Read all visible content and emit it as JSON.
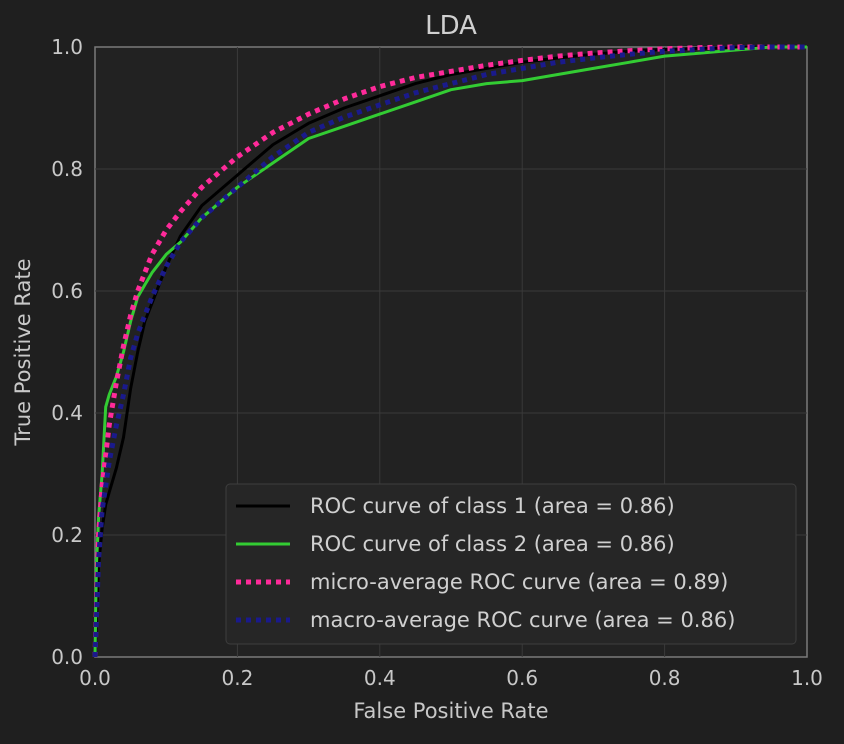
{
  "chart_data": {
    "type": "line",
    "title": "LDA",
    "xlabel": "False Positive Rate",
    "ylabel": "True Positive Rate",
    "xlim": [
      0.0,
      1.0
    ],
    "ylim": [
      0.0,
      1.0
    ],
    "xticks": [
      "0.0",
      "0.2",
      "0.4",
      "0.6",
      "0.8",
      "1.0"
    ],
    "yticks": [
      "0.0",
      "0.2",
      "0.4",
      "0.6",
      "0.8",
      "1.0"
    ],
    "grid": true,
    "legend_position": "lower-right",
    "series": [
      {
        "name": "ROC curve of class 1 (area = 0.86)",
        "color": "#000000",
        "style": "solid",
        "x": [
          0.0,
          0.005,
          0.01,
          0.015,
          0.02,
          0.03,
          0.04,
          0.05,
          0.06,
          0.07,
          0.08,
          0.1,
          0.12,
          0.15,
          0.2,
          0.25,
          0.3,
          0.35,
          0.4,
          0.45,
          0.5,
          0.55,
          0.6,
          0.65,
          0.7,
          0.75,
          0.8,
          0.85,
          0.9,
          0.95,
          1.0
        ],
        "y": [
          0.0,
          0.15,
          0.21,
          0.25,
          0.27,
          0.31,
          0.36,
          0.44,
          0.5,
          0.55,
          0.58,
          0.64,
          0.69,
          0.74,
          0.79,
          0.84,
          0.875,
          0.9,
          0.92,
          0.94,
          0.955,
          0.965,
          0.975,
          0.982,
          0.988,
          0.993,
          0.996,
          0.998,
          0.999,
          1.0,
          1.0
        ]
      },
      {
        "name": "ROC curve of class 2 (area = 0.86)",
        "color": "#33cc33",
        "style": "solid",
        "x": [
          0.0,
          0.002,
          0.005,
          0.01,
          0.015,
          0.02,
          0.03,
          0.04,
          0.05,
          0.06,
          0.07,
          0.08,
          0.1,
          0.12,
          0.15,
          0.2,
          0.25,
          0.3,
          0.35,
          0.4,
          0.45,
          0.5,
          0.55,
          0.6,
          0.65,
          0.7,
          0.75,
          0.8,
          0.85,
          0.9,
          0.95,
          1.0
        ],
        "y": [
          0.0,
          0.15,
          0.23,
          0.3,
          0.41,
          0.43,
          0.46,
          0.5,
          0.55,
          0.59,
          0.61,
          0.63,
          0.66,
          0.68,
          0.72,
          0.77,
          0.81,
          0.85,
          0.87,
          0.89,
          0.91,
          0.93,
          0.94,
          0.945,
          0.955,
          0.965,
          0.975,
          0.985,
          0.99,
          0.995,
          1.0,
          1.0
        ]
      },
      {
        "name": "micro-average ROC curve (area = 0.89)",
        "color": "#ff2a9a",
        "style": "dotted",
        "x": [
          0.0,
          0.005,
          0.01,
          0.02,
          0.03,
          0.04,
          0.05,
          0.06,
          0.07,
          0.08,
          0.1,
          0.12,
          0.15,
          0.2,
          0.25,
          0.3,
          0.35,
          0.4,
          0.45,
          0.5,
          0.55,
          0.6,
          0.65,
          0.7,
          0.75,
          0.8,
          0.85,
          0.9,
          0.95,
          1.0
        ],
        "y": [
          0.0,
          0.2,
          0.28,
          0.38,
          0.45,
          0.51,
          0.56,
          0.6,
          0.63,
          0.66,
          0.7,
          0.73,
          0.77,
          0.82,
          0.86,
          0.89,
          0.915,
          0.935,
          0.95,
          0.96,
          0.97,
          0.978,
          0.985,
          0.99,
          0.994,
          0.997,
          0.999,
          1.0,
          1.0,
          1.0
        ]
      },
      {
        "name": "macro-average ROC curve (area = 0.86)",
        "color": "#1a1a8c",
        "style": "dotted",
        "x": [
          0.0,
          0.005,
          0.01,
          0.02,
          0.03,
          0.04,
          0.05,
          0.06,
          0.07,
          0.08,
          0.1,
          0.12,
          0.15,
          0.2,
          0.25,
          0.3,
          0.35,
          0.4,
          0.45,
          0.5,
          0.55,
          0.6,
          0.65,
          0.7,
          0.75,
          0.8,
          0.85,
          0.9,
          0.95,
          1.0
        ],
        "y": [
          0.0,
          0.16,
          0.24,
          0.32,
          0.38,
          0.43,
          0.49,
          0.53,
          0.56,
          0.59,
          0.64,
          0.68,
          0.72,
          0.77,
          0.82,
          0.86,
          0.885,
          0.905,
          0.925,
          0.94,
          0.955,
          0.965,
          0.975,
          0.982,
          0.988,
          0.993,
          0.996,
          0.999,
          1.0,
          1.0
        ]
      }
    ]
  }
}
